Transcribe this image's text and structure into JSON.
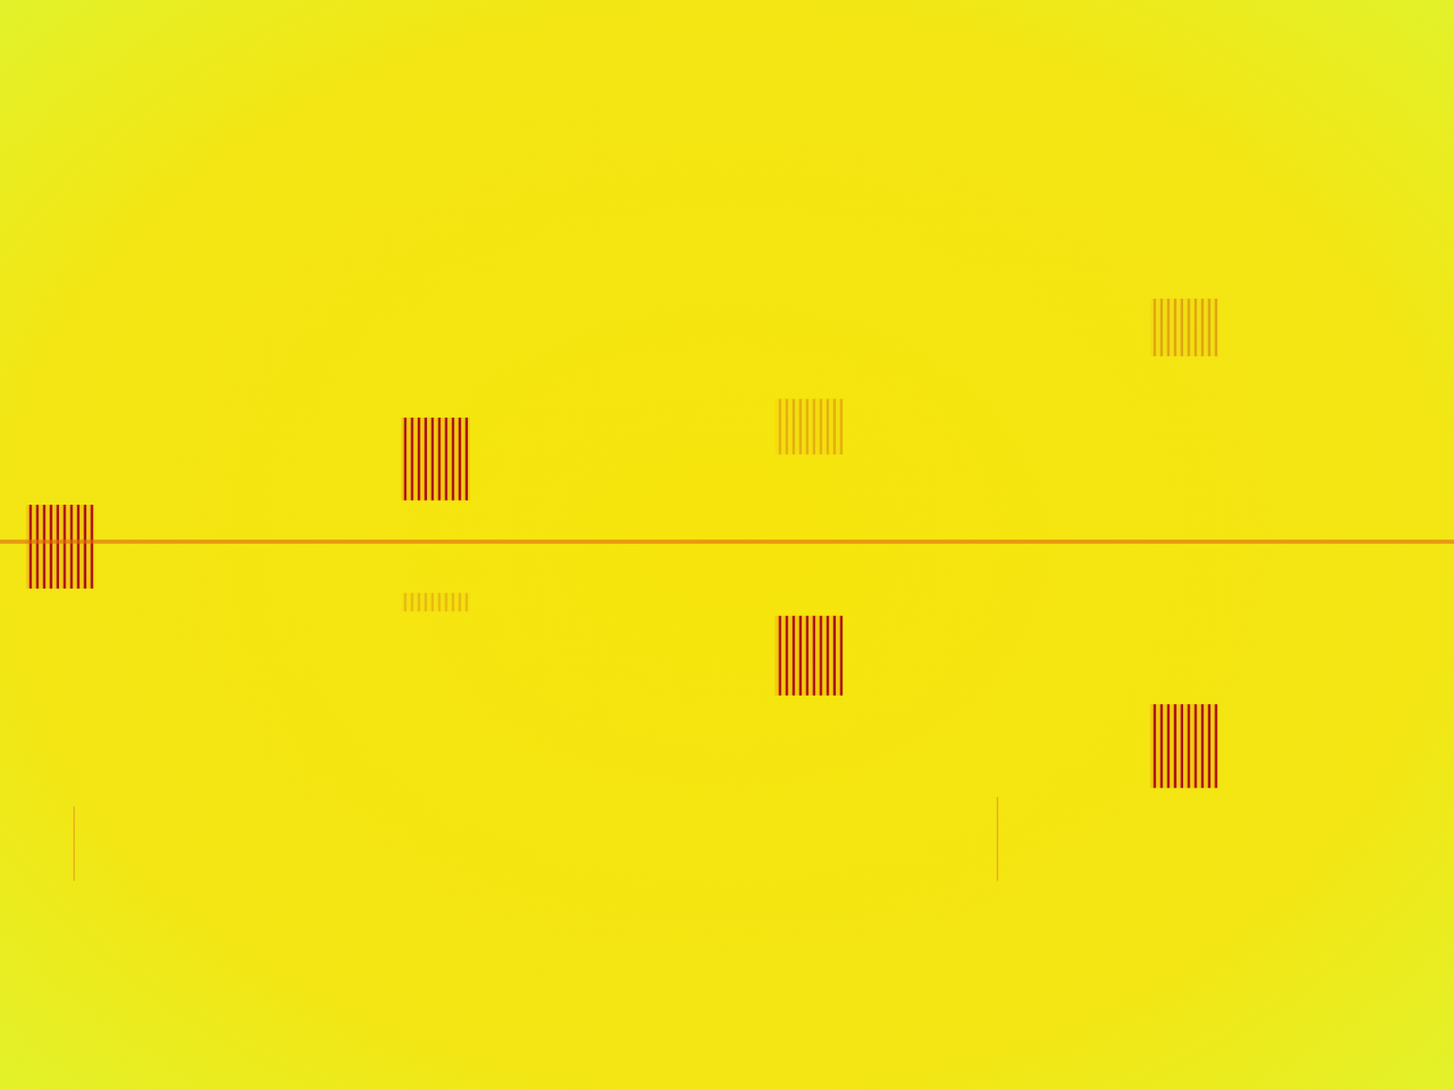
{
  "chart_data": {
    "type": "spectrogram",
    "xlim": [
      0,
      100
    ],
    "ylim": [
      0,
      100
    ],
    "tick_labels": false,
    "grid": false,
    "carrier": {
      "y": 50.3,
      "intensity": 0.6
    },
    "bursts": [
      {
        "x": [
          1.8,
          6.5
        ],
        "y": [
          46.0,
          53.7
        ],
        "intensity": 1
      },
      {
        "x": [
          27.6,
          32.3
        ],
        "y": [
          54.1,
          61.7
        ],
        "intensity": 1
      },
      {
        "x": [
          27.6,
          32.3
        ],
        "y": [
          43.9,
          45.6
        ],
        "intensity": 0.2
      },
      {
        "x": [
          53.3,
          58.0
        ],
        "y": [
          36.2,
          43.5
        ],
        "intensity": 1
      },
      {
        "x": [
          53.3,
          58.0
        ],
        "y": [
          58.3,
          63.4
        ],
        "intensity": 0.25
      },
      {
        "x": [
          79.1,
          83.8
        ],
        "y": [
          27.7,
          35.4
        ],
        "intensity": 1
      },
      {
        "x": [
          79.1,
          83.8
        ],
        "y": [
          67.3,
          72.6
        ],
        "intensity": 0.3
      }
    ],
    "traces": [
      {
        "x": 5.1,
        "y": [
          19.2,
          26.0
        ]
      },
      {
        "x": 68.6,
        "y": [
          19.2,
          26.9
        ]
      }
    ]
  }
}
